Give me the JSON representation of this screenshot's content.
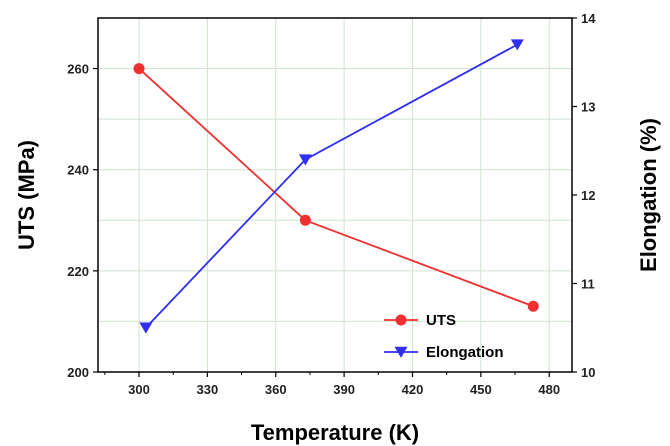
{
  "chart_data": {
    "type": "line",
    "xlabel": "Temperature (K)",
    "ylabel_left": "UTS (MPa)",
    "ylabel_right": "Elongation (%)",
    "xlim": [
      282,
      490
    ],
    "ylim_left": [
      200,
      270
    ],
    "ylim_right": [
      10,
      14
    ],
    "x_ticks": [
      300,
      330,
      360,
      390,
      420,
      450,
      480
    ],
    "y_left_ticks": [
      200,
      220,
      240,
      260
    ],
    "y_right_ticks": [
      10,
      11,
      12,
      13,
      14
    ],
    "grid": true,
    "legend": "bottom-right",
    "series": [
      {
        "name": "UTS",
        "axis": "left",
        "color": "#f03030",
        "marker": "circle",
        "points": [
          {
            "x": 300,
            "y": 260
          },
          {
            "x": 373,
            "y": 230
          },
          {
            "x": 473,
            "y": 213
          }
        ]
      },
      {
        "name": "Elongation",
        "axis": "right",
        "color": "#2f2ff0",
        "marker": "triangle-down",
        "points": [
          {
            "x": 303,
            "y": 10.5
          },
          {
            "x": 373,
            "y": 12.4
          },
          {
            "x": 466,
            "y": 13.7
          }
        ]
      }
    ]
  }
}
